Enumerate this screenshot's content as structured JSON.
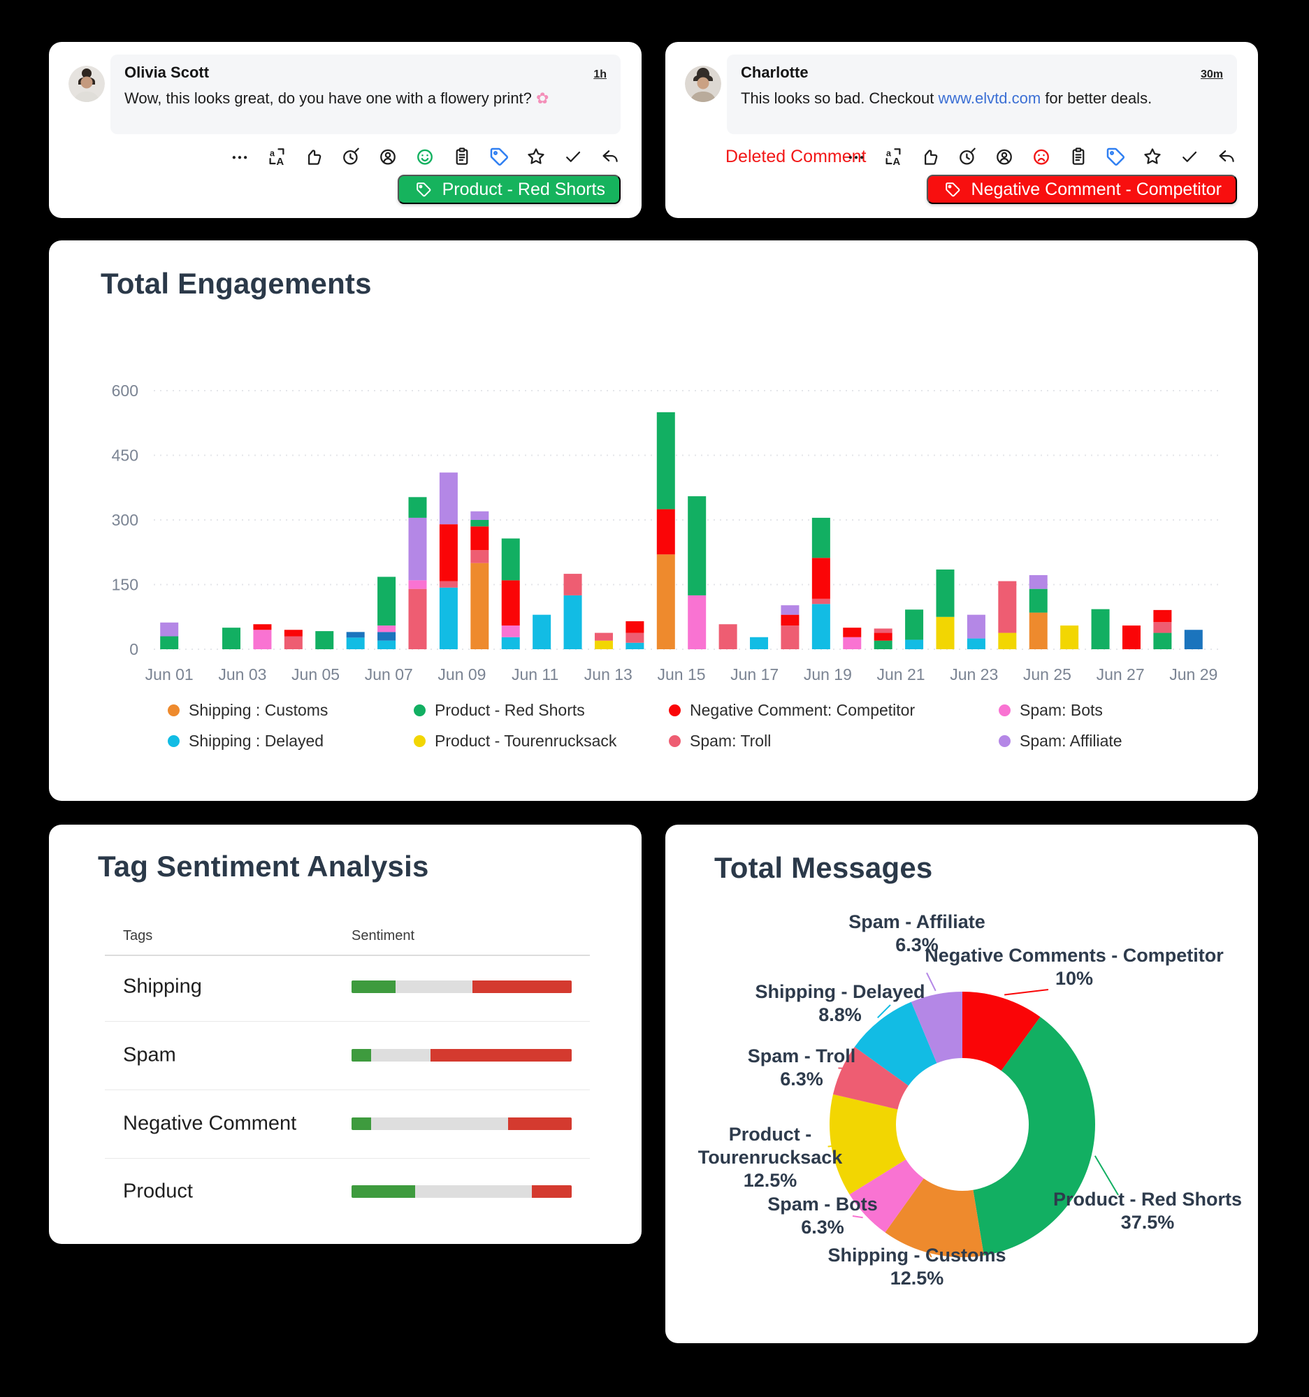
{
  "comment_cards": [
    {
      "author": "Olivia Scott",
      "timestamp": "1h",
      "message": "Wow, this looks great, do you have one with a flowery print?",
      "emoji": "✿",
      "icons": [
        "more",
        "translate",
        "thumbs-up",
        "clock",
        "assign-user",
        "smiley-positive",
        "notes",
        "tag",
        "star",
        "check",
        "reply"
      ],
      "tag_button": {
        "label": "Product - Red Shorts",
        "color": "#16b35d"
      }
    },
    {
      "author": "Charlotte",
      "timestamp": "30m",
      "message_before_link": "This looks so bad. Checkout ",
      "link_text": "www.elvtd.com",
      "message_after_link": " for better deals.",
      "status_label": "Deleted Comment",
      "icons": [
        "more",
        "translate",
        "thumbs-up",
        "clock",
        "assign-user",
        "smiley-negative",
        "notes",
        "tag",
        "star",
        "check",
        "reply"
      ],
      "tag_button": {
        "label": "Negative Comment - Competitor",
        "color": "#f80f0f"
      }
    }
  ],
  "chart_data": [
    {
      "id": "engagements",
      "type": "bar",
      "title": "Total Engagements",
      "ylim": [
        0,
        600
      ],
      "yticks": [
        0,
        150,
        300,
        450,
        600
      ],
      "xticks": [
        "Jun 01",
        "Jun 03",
        "Jun 05",
        "Jun 07",
        "Jun 09",
        "Jun 11",
        "Jun 13",
        "Jun 15",
        "Jun 17",
        "Jun 19",
        "Jun 21",
        "Jun 23",
        "Jun 25",
        "Jun 27",
        "Jun 29"
      ],
      "grid": "dashed-horizontal",
      "palette": {
        "customs": "#ee8a2d",
        "delayed": "#12bce4",
        "red_shorts": "#12af62",
        "tourenrucksack": "#f2d602",
        "negative": "#fa0507",
        "troll": "#ee5d72",
        "bots": "#f973d2",
        "affiliate": "#b487e6",
        "blue": "#1b74bd"
      },
      "legend": [
        {
          "key": "customs",
          "label": "Shipping : Customs"
        },
        {
          "key": "delayed",
          "label": "Shipping : Delayed"
        },
        {
          "key": "red_shorts",
          "label": "Product - Red Shorts"
        },
        {
          "key": "tourenrucksack",
          "label": "Product - Tourenrucksack"
        },
        {
          "key": "negative",
          "label": "Negative Comment: Competitor"
        },
        {
          "key": "troll",
          "label": "Spam: Troll"
        },
        {
          "key": "bots",
          "label": "Spam: Bots"
        },
        {
          "key": "affiliate",
          "label": "Spam: Affiliate"
        }
      ],
      "bars": [
        [
          [
            "red_shorts",
            30
          ],
          [
            "affiliate",
            32
          ]
        ],
        [],
        [
          [
            "red_shorts",
            50
          ]
        ],
        [
          [
            "bots",
            45
          ],
          [
            "negative",
            13
          ]
        ],
        [
          [
            "troll",
            30
          ],
          [
            "negative",
            15
          ]
        ],
        [
          [
            "red_shorts",
            42
          ]
        ],
        [
          [
            "delayed",
            27
          ],
          [
            "blue",
            13
          ]
        ],
        [
          [
            "delayed",
            20
          ],
          [
            "blue",
            20
          ],
          [
            "bots",
            15
          ],
          [
            "red_shorts",
            113
          ]
        ],
        [
          [
            "troll",
            140
          ],
          [
            "bots",
            20
          ],
          [
            "affiliate",
            145
          ],
          [
            "red_shorts",
            48
          ]
        ],
        [
          [
            "delayed",
            143
          ],
          [
            "troll",
            15
          ],
          [
            "negative",
            132
          ],
          [
            "affiliate",
            120
          ]
        ],
        [
          [
            "customs",
            200
          ],
          [
            "troll",
            30
          ],
          [
            "negative",
            55
          ],
          [
            "red_shorts",
            15
          ],
          [
            "affiliate",
            20
          ]
        ],
        [
          [
            "delayed",
            28
          ],
          [
            "bots",
            27
          ],
          [
            "negative",
            105
          ],
          [
            "red_shorts",
            97
          ]
        ],
        [
          [
            "delayed",
            80
          ]
        ],
        [
          [
            "delayed",
            125
          ],
          [
            "troll",
            50
          ]
        ],
        [
          [
            "tourenrucksack",
            20
          ],
          [
            "troll",
            18
          ]
        ],
        [
          [
            "delayed",
            15
          ],
          [
            "troll",
            23
          ],
          [
            "negative",
            27
          ]
        ],
        [
          [
            "customs",
            220
          ],
          [
            "negative",
            105
          ],
          [
            "red_shorts",
            225
          ]
        ],
        [
          [
            "bots",
            125
          ],
          [
            "red_shorts",
            230
          ]
        ],
        [
          [
            "troll",
            58
          ]
        ],
        [
          [
            "delayed",
            28
          ]
        ],
        [
          [
            "troll",
            55
          ],
          [
            "negative",
            25
          ],
          [
            "affiliate",
            22
          ]
        ],
        [
          [
            "delayed",
            105
          ],
          [
            "troll",
            12
          ],
          [
            "negative",
            95
          ],
          [
            "red_shorts",
            93
          ]
        ],
        [
          [
            "bots",
            28
          ],
          [
            "negative",
            22
          ]
        ],
        [
          [
            "red_shorts",
            20
          ],
          [
            "negative",
            18
          ],
          [
            "troll",
            10
          ]
        ],
        [
          [
            "delayed",
            22
          ],
          [
            "red_shorts",
            70
          ]
        ],
        [
          [
            "tourenrucksack",
            75
          ],
          [
            "red_shorts",
            110
          ]
        ],
        [
          [
            "delayed",
            25
          ],
          [
            "affiliate",
            55
          ]
        ],
        [
          [
            "tourenrucksack",
            38
          ],
          [
            "troll",
            120
          ]
        ],
        [
          [
            "customs",
            85
          ],
          [
            "red_shorts",
            55
          ],
          [
            "affiliate",
            32
          ]
        ],
        [
          [
            "tourenrucksack",
            55
          ]
        ],
        [
          [
            "red_shorts",
            93
          ]
        ],
        [
          [
            "negative",
            55
          ]
        ],
        [
          [
            "red_shorts",
            38
          ],
          [
            "troll",
            25
          ],
          [
            "negative",
            28
          ]
        ],
        [
          [
            "blue",
            45
          ]
        ]
      ]
    },
    {
      "id": "sentiment",
      "type": "table",
      "title": "Tag Sentiment Analysis",
      "columns": [
        "Tags",
        "Sentiment"
      ],
      "colors": {
        "positive": "#3e9b3e",
        "neutral": "#dedede",
        "negative": "#d43a2f"
      },
      "rows": [
        {
          "tag": "Shipping",
          "positive": 20,
          "neutral": 35,
          "negative": 45
        },
        {
          "tag": "Spam",
          "positive": 9,
          "neutral": 27,
          "negative": 64
        },
        {
          "tag": "Negative Comment",
          "positive": 9,
          "neutral": 62,
          "negative": 29
        },
        {
          "tag": "Product",
          "positive": 29,
          "neutral": 53,
          "negative": 18
        }
      ]
    },
    {
      "id": "messages",
      "type": "pie",
      "title": "Total Messages",
      "slices": [
        {
          "label": "Negative Comments - Competitor",
          "label_lines": [
            "Negative Comments - Competitor"
          ],
          "pct_label": "10%",
          "value": 10,
          "key": "negative"
        },
        {
          "label": "Product - Red Shorts",
          "label_lines": [
            "Product - Red Shorts"
          ],
          "pct_label": "37.5%",
          "value": 37.5,
          "key": "red_shorts"
        },
        {
          "label": "Shipping - Customs",
          "label_lines": [
            "Shipping - Customs"
          ],
          "pct_label": "12.5%",
          "value": 12.5,
          "key": "customs"
        },
        {
          "label": "Spam - Bots",
          "label_lines": [
            "Spam - Bots"
          ],
          "pct_label": "6.3%",
          "value": 6.3,
          "key": "bots"
        },
        {
          "label": "Product - Tourenrucksack",
          "label_lines": [
            "Product -",
            "Tourenrucksack"
          ],
          "pct_label": "12.5%",
          "value": 12.5,
          "key": "tourenrucksack"
        },
        {
          "label": "Spam - Troll",
          "label_lines": [
            "Spam - Troll"
          ],
          "pct_label": "6.3%",
          "value": 6.3,
          "key": "troll"
        },
        {
          "label": "Shipping - Delayed",
          "label_lines": [
            "Shipping - Delayed"
          ],
          "pct_label": "8.8%",
          "value": 8.8,
          "key": "delayed"
        },
        {
          "label": "Spam - Affiliate",
          "label_lines": [
            "Spam - Affiliate"
          ],
          "pct_label": "6.3%",
          "value": 6.3,
          "key": "affiliate"
        }
      ]
    }
  ]
}
